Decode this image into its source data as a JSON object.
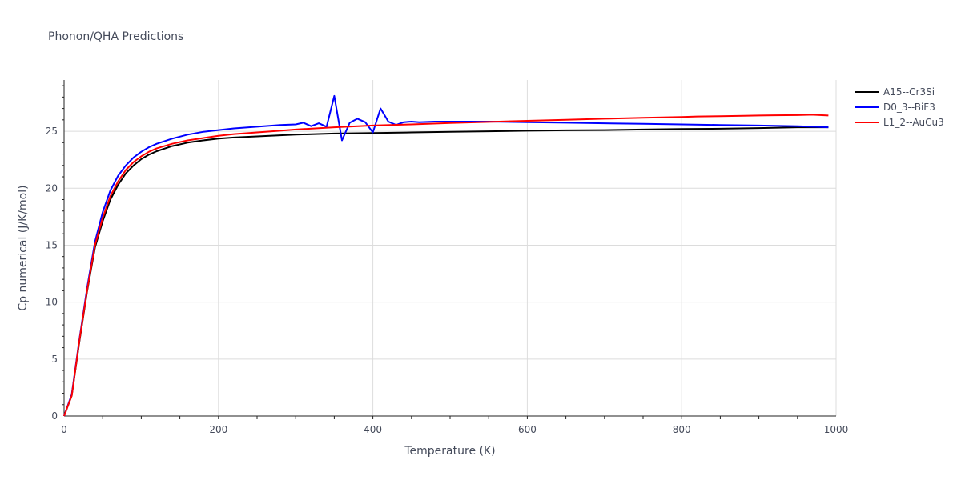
{
  "chart_data": {
    "type": "line",
    "title": "Phonon/QHA Predictions",
    "xlabel": "Temperature (K)",
    "ylabel": "Cp numerical (J/K/mol)",
    "xlim": [
      0,
      1000
    ],
    "ylim": [
      0,
      29.5
    ],
    "x_ticks": [
      0,
      200,
      400,
      600,
      800,
      1000
    ],
    "y_ticks": [
      0,
      5,
      10,
      15,
      20,
      25
    ],
    "x_tick_labels": [
      "0",
      "200",
      "400",
      "600",
      "800",
      "1000"
    ],
    "y_tick_labels": [
      "0",
      "5",
      "10",
      "15",
      "20",
      "25"
    ],
    "grid": true,
    "legend_position": "top-right",
    "series": [
      {
        "name": "A15--Cr3Si",
        "color": "#000000",
        "x": [
          0,
          10,
          20,
          30,
          40,
          50,
          60,
          70,
          80,
          90,
          100,
          110,
          120,
          140,
          160,
          180,
          200,
          220,
          250,
          280,
          300,
          350,
          400,
          450,
          500,
          550,
          600,
          650,
          700,
          750,
          800,
          850,
          900,
          950,
          970,
          990
        ],
        "y": [
          0,
          1.8,
          6.6,
          11.0,
          14.8,
          17.1,
          19.0,
          20.3,
          21.3,
          22.0,
          22.55,
          22.95,
          23.25,
          23.7,
          24.0,
          24.2,
          24.35,
          24.45,
          24.55,
          24.65,
          24.7,
          24.8,
          24.85,
          24.9,
          24.95,
          25.0,
          25.05,
          25.08,
          25.1,
          25.15,
          25.2,
          25.22,
          25.28,
          25.35,
          25.35,
          25.35
        ]
      },
      {
        "name": "D0_3--BiF3",
        "color": "#0000ff",
        "x": [
          0,
          10,
          20,
          30,
          40,
          50,
          60,
          70,
          80,
          90,
          100,
          110,
          120,
          140,
          160,
          180,
          200,
          220,
          250,
          280,
          300,
          310,
          320,
          330,
          340,
          350,
          360,
          370,
          380,
          390,
          400,
          410,
          420,
          430,
          440,
          450,
          460,
          480,
          500,
          550,
          600,
          650,
          700,
          750,
          800,
          850,
          900,
          950,
          990
        ],
        "y": [
          0,
          1.9,
          6.8,
          11.3,
          15.3,
          17.9,
          19.8,
          21.1,
          22.0,
          22.7,
          23.2,
          23.6,
          23.9,
          24.35,
          24.7,
          24.95,
          25.1,
          25.25,
          25.4,
          25.55,
          25.6,
          25.75,
          25.45,
          25.7,
          25.4,
          28.1,
          24.2,
          25.75,
          26.1,
          25.8,
          24.9,
          27.0,
          25.85,
          25.55,
          25.8,
          25.85,
          25.8,
          25.85,
          25.85,
          25.85,
          25.8,
          25.75,
          25.7,
          25.65,
          25.6,
          25.55,
          25.5,
          25.45,
          25.35
        ]
      },
      {
        "name": "L1_2--AuCu3",
        "color": "#ff0000",
        "x": [
          0,
          10,
          20,
          30,
          40,
          50,
          60,
          70,
          80,
          90,
          100,
          110,
          120,
          140,
          160,
          180,
          200,
          220,
          250,
          280,
          300,
          350,
          400,
          450,
          500,
          550,
          600,
          650,
          700,
          750,
          800,
          820,
          850,
          880,
          900,
          920,
          950,
          970,
          990
        ],
        "y": [
          0,
          1.8,
          6.7,
          11.1,
          15.0,
          17.4,
          19.3,
          20.6,
          21.6,
          22.3,
          22.8,
          23.2,
          23.5,
          23.9,
          24.2,
          24.4,
          24.6,
          24.75,
          24.9,
          25.05,
          25.15,
          25.35,
          25.5,
          25.6,
          25.72,
          25.82,
          25.92,
          26.0,
          26.1,
          26.18,
          26.25,
          26.3,
          26.32,
          26.35,
          26.38,
          26.4,
          26.42,
          26.45,
          26.38
        ]
      }
    ]
  }
}
